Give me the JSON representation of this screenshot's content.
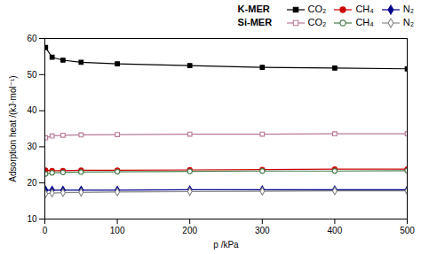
{
  "chart_data": {
    "type": "line",
    "xlabel": "p /kPa",
    "ylabel": "Adsorption heat /(kJ·mol⁻¹)",
    "x": [
      1,
      10,
      25,
      50,
      100,
      200,
      300,
      400,
      500
    ],
    "xlim": [
      0,
      500
    ],
    "ylim": [
      10,
      60
    ],
    "xticks": [
      0,
      100,
      200,
      300,
      400,
      500
    ],
    "yticks": [
      10,
      20,
      30,
      40,
      50,
      60
    ],
    "grid": false,
    "legend": "upper right",
    "series": [
      {
        "name": "CO₂",
        "group": "K-MER",
        "color": "#000000",
        "marker": "square",
        "values": [
          57.5,
          54.8,
          54.0,
          53.4,
          53.0,
          52.5,
          52.0,
          51.8,
          51.6
        ]
      },
      {
        "name": "CH₄",
        "group": "K-MER",
        "color": "#cc0000",
        "marker": "circle",
        "values": [
          23.5,
          23.4,
          23.4,
          23.5,
          23.5,
          23.6,
          23.7,
          23.8,
          23.8
        ]
      },
      {
        "name": "N₂",
        "group": "K-MER",
        "color": "#00008b",
        "marker": "diamond",
        "values": [
          18.0,
          18.0,
          18.0,
          18.0,
          18.0,
          18.1,
          18.1,
          18.1,
          18.1
        ]
      },
      {
        "name": "CO₂",
        "group": "Si-MER",
        "color": "#b87898",
        "marker": "square-open",
        "values": [
          32.5,
          33.0,
          33.2,
          33.3,
          33.4,
          33.5,
          33.5,
          33.6,
          33.6
        ]
      },
      {
        "name": "CH₄",
        "group": "Si-MER",
        "color": "#4a7a4a",
        "marker": "circle-open",
        "values": [
          22.5,
          22.8,
          22.9,
          23.0,
          23.1,
          23.2,
          23.3,
          23.3,
          23.4
        ]
      },
      {
        "name": "N₂",
        "group": "Si-MER",
        "color": "#888888",
        "marker": "diamond-open",
        "values": [
          17.0,
          17.2,
          17.3,
          17.4,
          17.5,
          17.6,
          17.7,
          17.8,
          17.8
        ]
      }
    ]
  }
}
